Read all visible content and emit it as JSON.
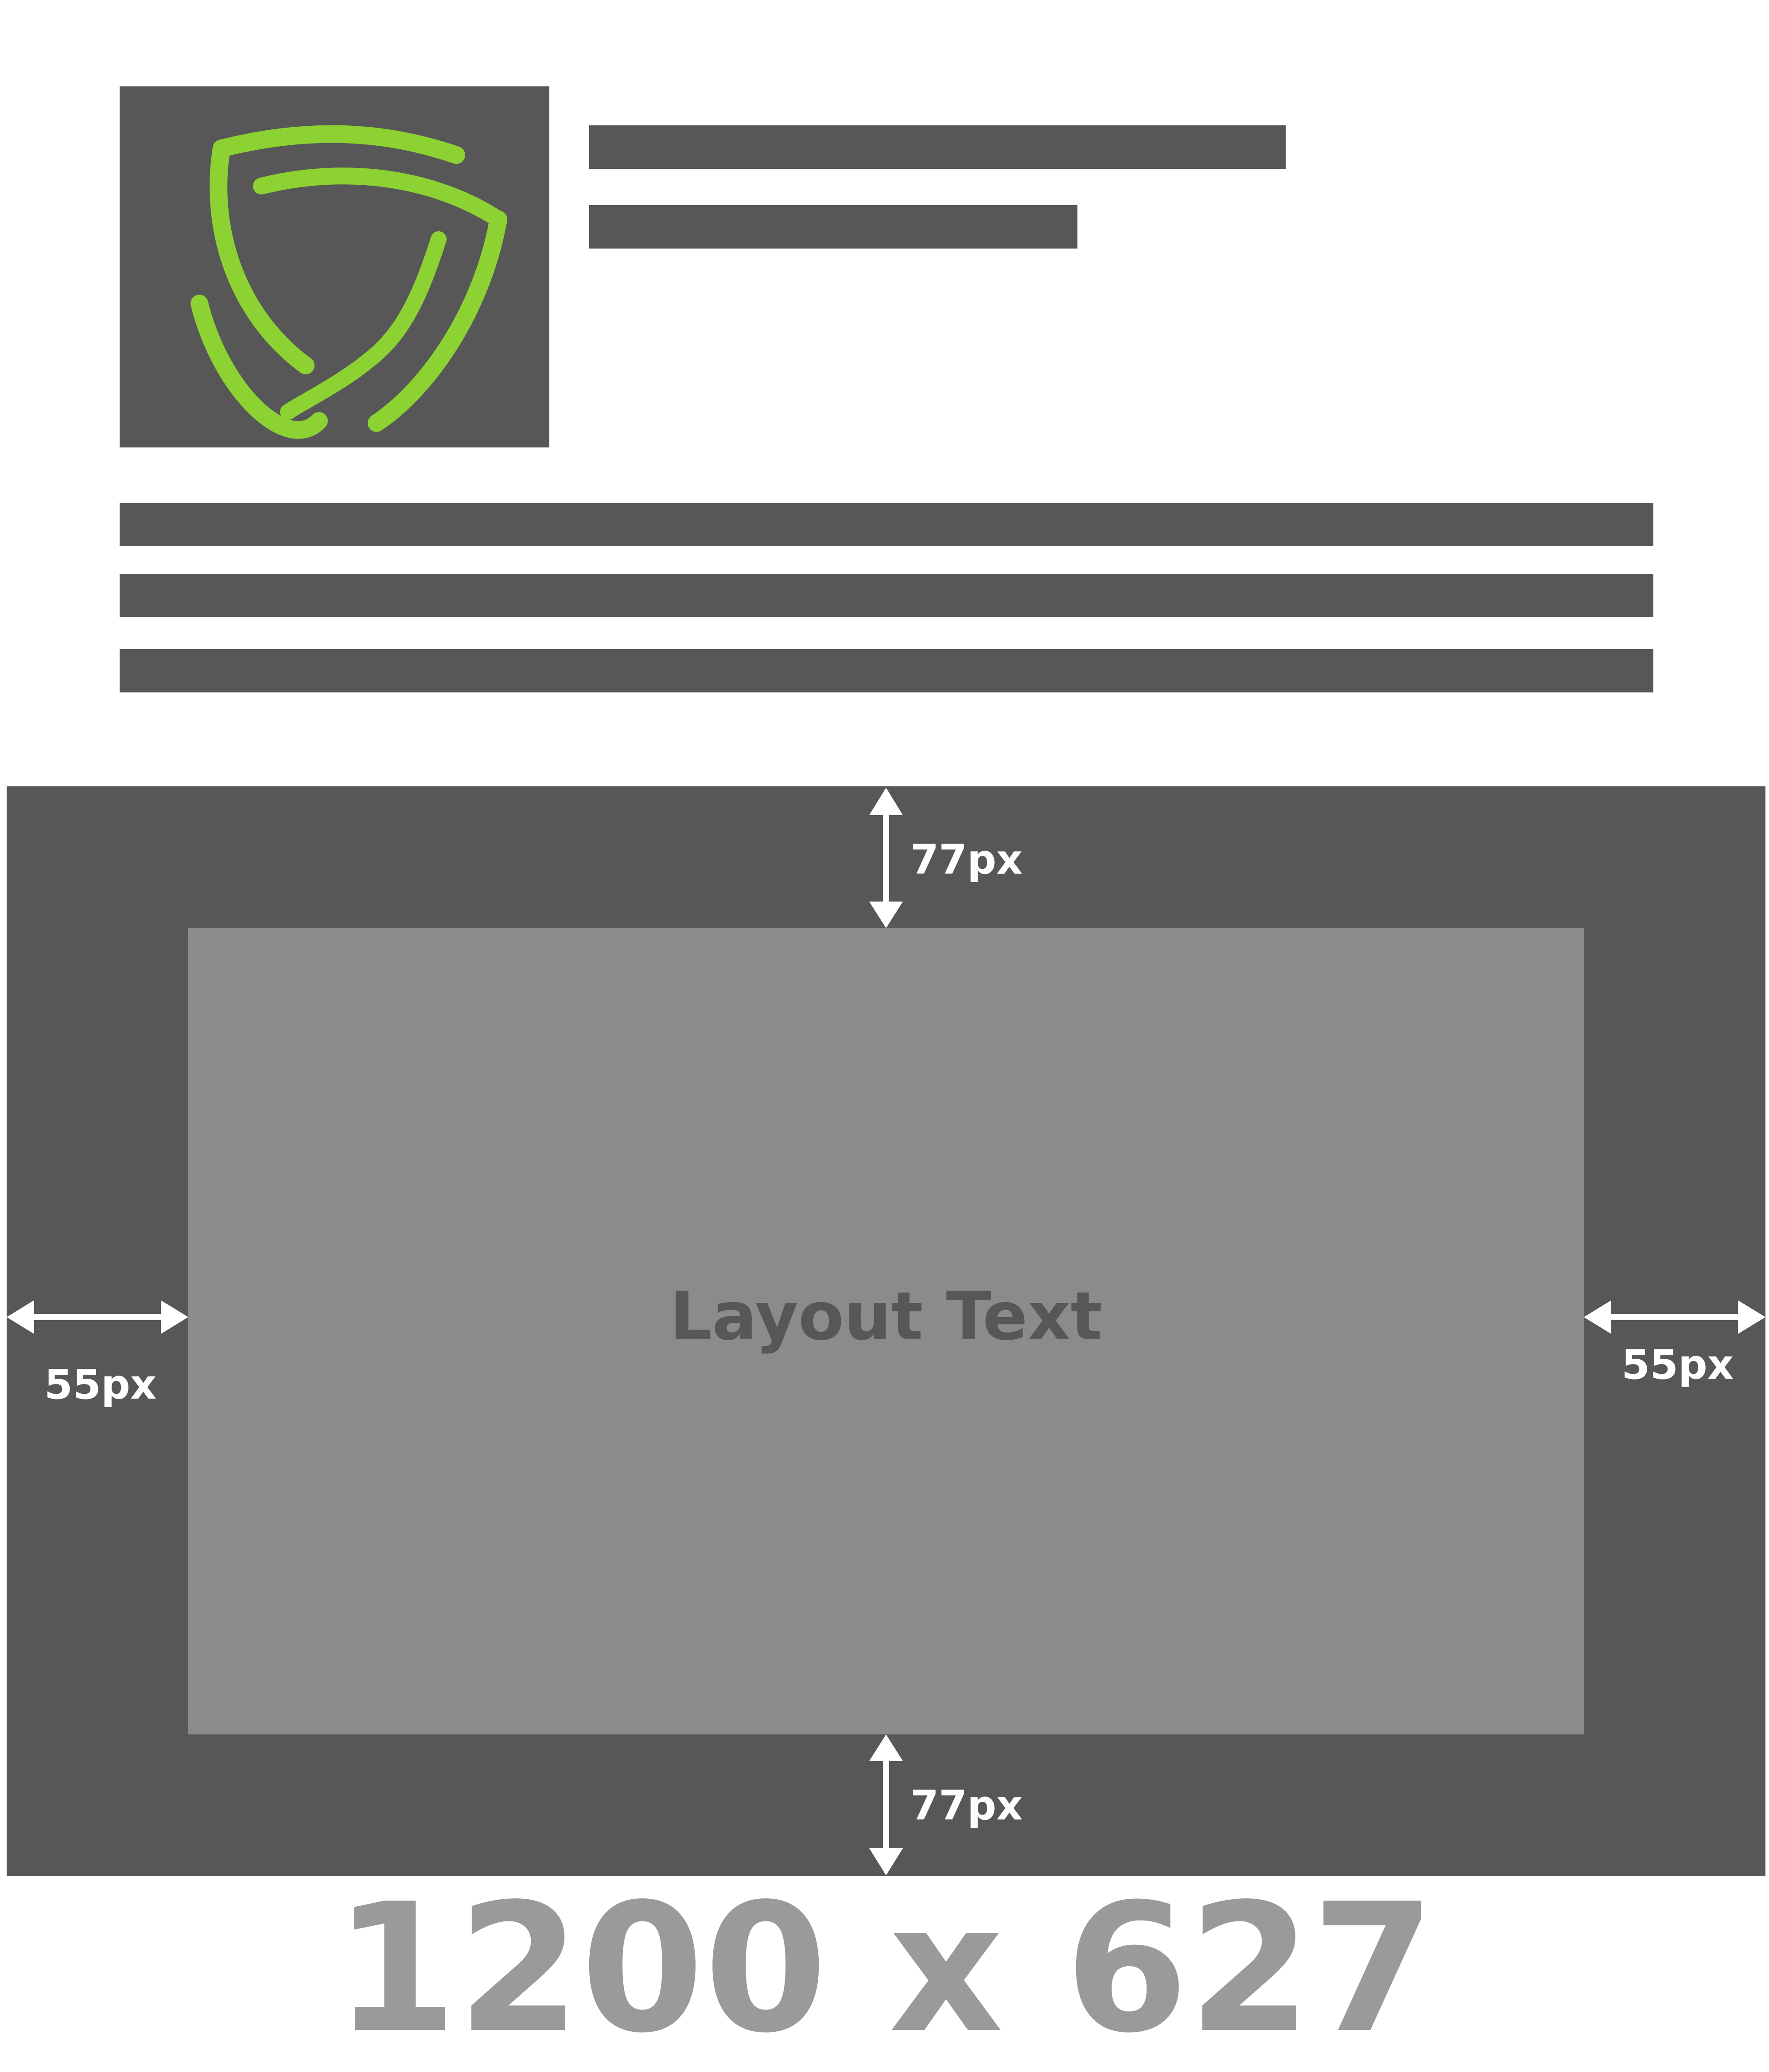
{
  "logo": {
    "icon": "shield-logo-icon",
    "color": "#8bd232"
  },
  "colors": {
    "frame": "#575757",
    "safe_zone": "#8b8b8b",
    "caption": "#9a9a9a",
    "arrow": "#ffffff"
  },
  "diagram": {
    "layout_text": "Layout Text",
    "top_margin_label": "77px",
    "bottom_margin_label": "77px",
    "left_margin_label": "55px",
    "right_margin_label": "55px",
    "dimensions": "1200 x 627"
  }
}
